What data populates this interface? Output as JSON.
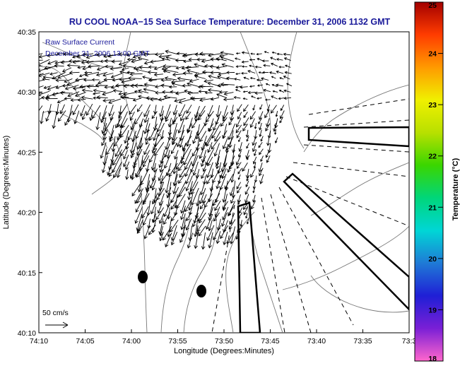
{
  "chart_data": {
    "type": "vector-field map",
    "title": "RU COOL  NOAA−15  Sea Surface Temperature:  December 31, 2006 1132 GMT",
    "overlay_line1": "Raw Surface Current",
    "overlay_line2": "December 31, 2006 13:00 GMT",
    "xlabel": "Longitude (Degrees:Minutes)",
    "ylabel": "Latitude (Degrees:Minutes)",
    "x_tick_labels": [
      "74:10",
      "74:05",
      "74:00",
      "73:55",
      "73:50",
      "73:45",
      "73:40",
      "73:35",
      "73:3"
    ],
    "y_tick_labels": [
      "40:35",
      "40:30",
      "40:25",
      "40:20",
      "40:15",
      "40:10"
    ],
    "xlim_minutes_west": [
      4450,
      4410
    ],
    "ylim_minutes_north": [
      2410,
      2435
    ],
    "scale_label": "50 cm/s",
    "scale_arrow_cm_s": 50,
    "colorbar": {
      "label": "Temperature (°C)",
      "range": [
        18,
        25
      ],
      "tick_labels": [
        "25",
        "24",
        "23",
        "22",
        "21",
        "20",
        "19",
        "18"
      ],
      "colors": [
        "#ff66cc",
        "#7a1fd6",
        "#1f1fd6",
        "#1f7ad6",
        "#00d6d6",
        "#00d67a",
        "#3ad600",
        "#b8e000",
        "#f0f000",
        "#ff9a00",
        "#ff3c00",
        "#a30000"
      ]
    },
    "grid": false,
    "legend": "none",
    "current_vectors_note": "Dense field of surface-current arrows; predominant flow toward the south-southwest near the shore, westward in the north.",
    "colors": {
      "title": "#1a1a9a",
      "arrows": "#000000",
      "land_contour": "#777777",
      "shipping_lanes": "#000000"
    }
  }
}
